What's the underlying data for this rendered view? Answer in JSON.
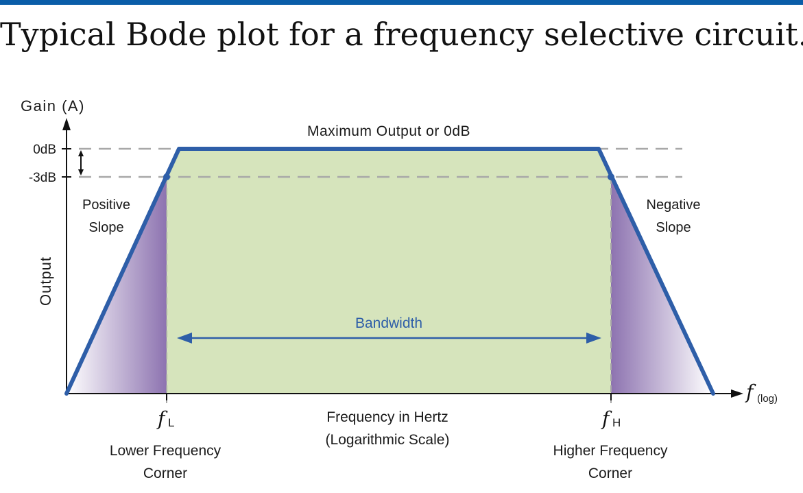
{
  "slide": {
    "title": "Typical Bode plot for a frequency selective circuit."
  },
  "diagram": {
    "y_axis_label": "Gain (A)",
    "y_side_label": "Output",
    "tick_0db": "0dB",
    "tick_minus3db": "-3dB",
    "max_output_label": "Maximum Output or 0dB",
    "positive_slope_label": [
      "Positive",
      "Slope"
    ],
    "negative_slope_label": [
      "Negative",
      "Slope"
    ],
    "bandwidth_label": "Bandwidth",
    "x_axis_symbol": "f",
    "x_axis_subscript": "(log)",
    "fl_symbol": "f",
    "fl_subscript": "L",
    "fh_symbol": "f",
    "fh_subscript": "H",
    "lower_corner_label": [
      "Lower Frequency",
      "Corner"
    ],
    "higher_corner_label": [
      "Higher Frequency",
      "Corner"
    ],
    "frequency_label": [
      "Frequency in Hertz",
      "(Logarithmic Scale)"
    ],
    "colors": {
      "curve": "#2e5ea8",
      "passband_fill": "#d6e4bc",
      "slope_fill": "#8d73b0",
      "bandwidth_arrow": "#2e5ea8",
      "guide_lines": "#a8a8a8",
      "accent_bar": "#0a5da8"
    }
  }
}
